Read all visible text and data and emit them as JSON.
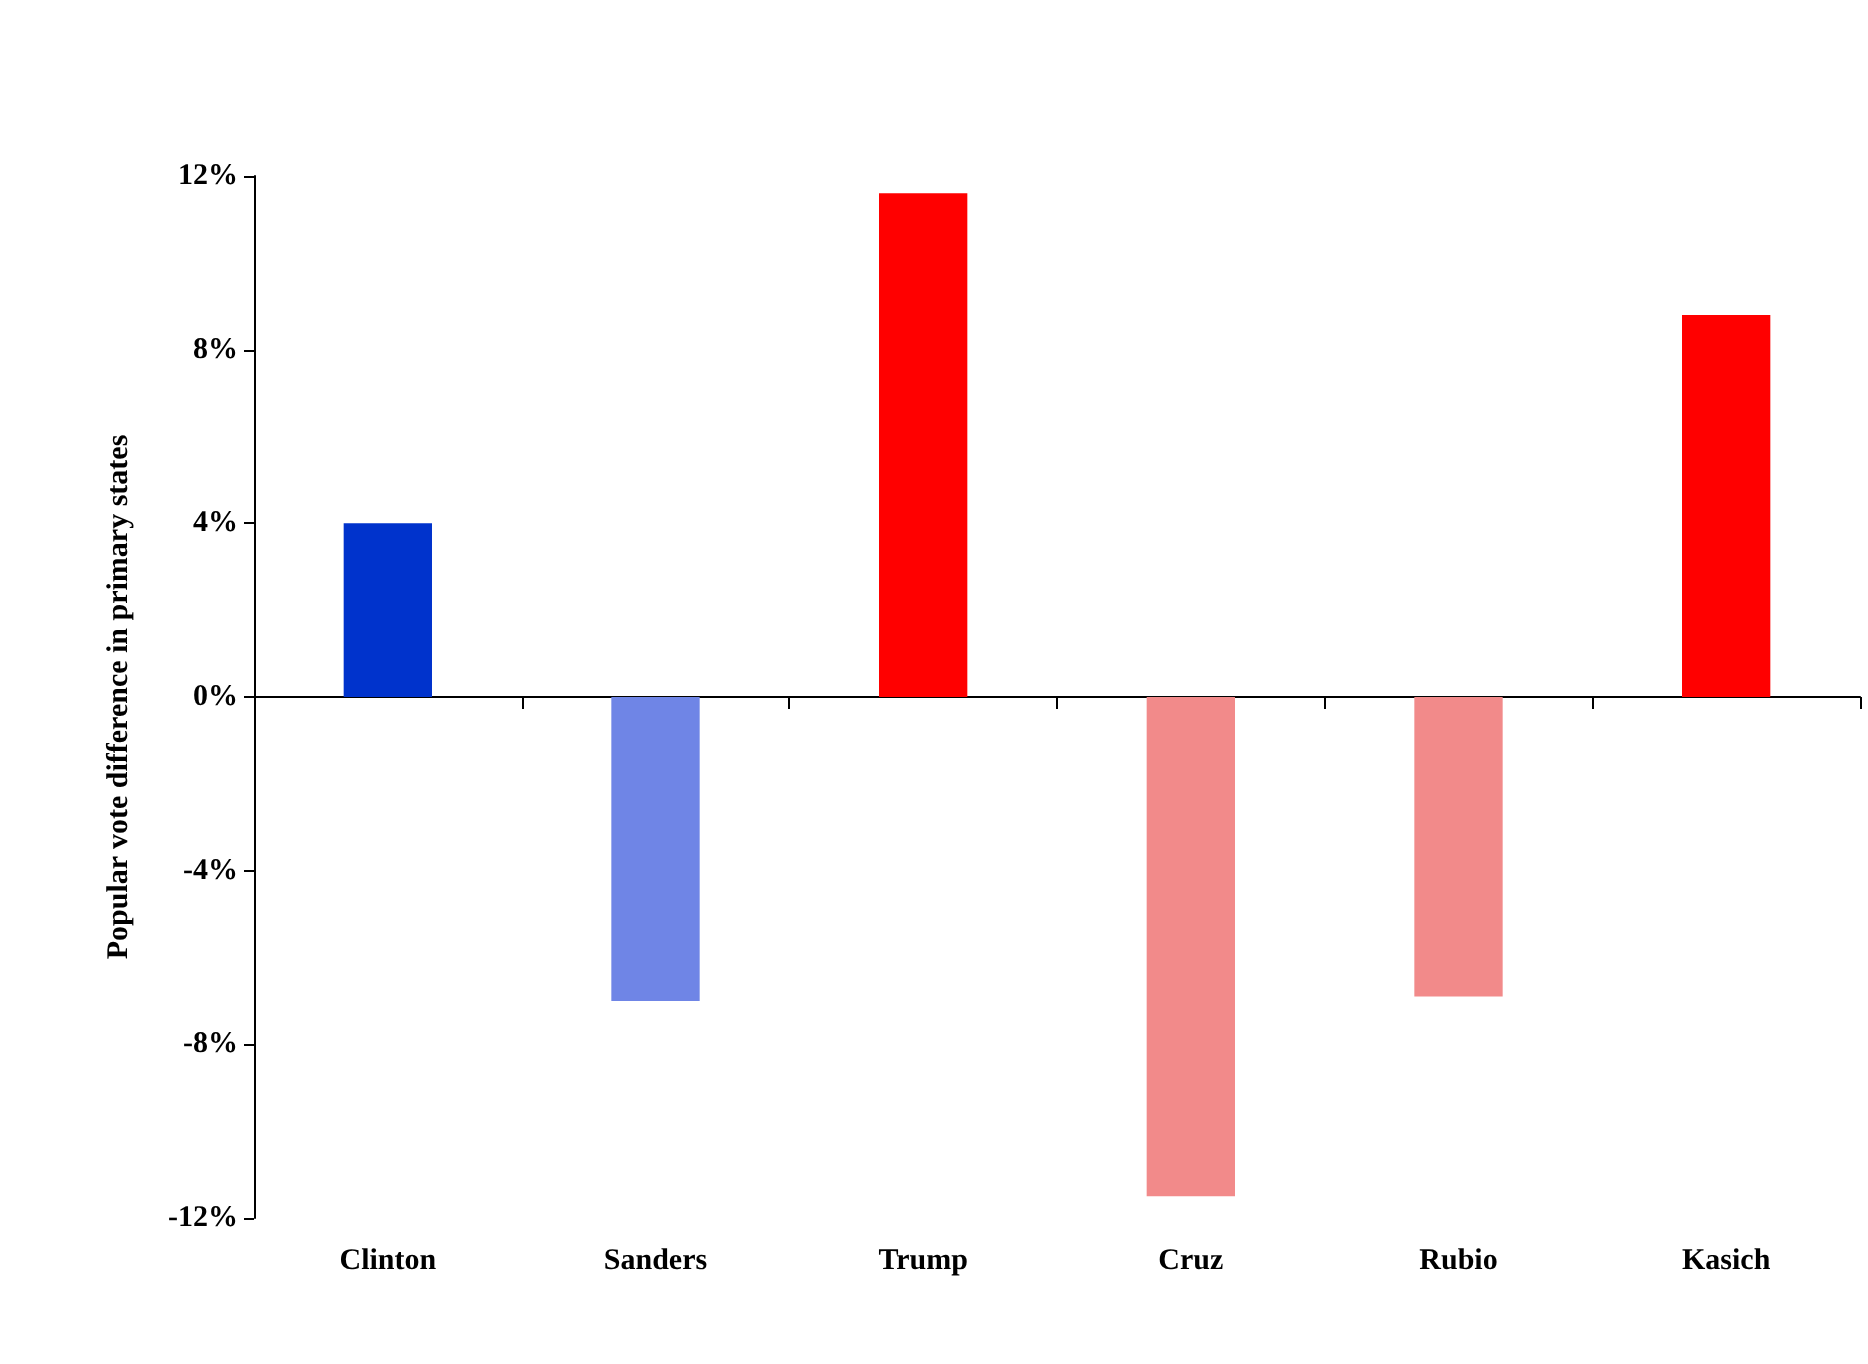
{
  "chart_data": {
    "type": "bar",
    "ylabel": "Popular vote difference in primary states",
    "categories": [
      "Clinton",
      "Sanders",
      "Trump",
      "Cruz",
      "Rubio",
      "Kasich"
    ],
    "values": [
      4.0,
      -7.0,
      11.6,
      -11.5,
      -6.9,
      8.8
    ],
    "colors": [
      "#0033cc",
      "#6f85e6",
      "#ff0000",
      "#f28a8a",
      "#f28a8a",
      "#ff0000"
    ],
    "ylim": [
      -12,
      12
    ],
    "yticks": [
      {
        "value": -12,
        "label": "-12%"
      },
      {
        "value": -8,
        "label": "-8%"
      },
      {
        "value": -4,
        "label": "-4%"
      },
      {
        "value": 0,
        "label": "0%"
      },
      {
        "value": 4,
        "label": "4%"
      },
      {
        "value": 8,
        "label": "8%"
      },
      {
        "value": 12,
        "label": "12%"
      }
    ]
  }
}
